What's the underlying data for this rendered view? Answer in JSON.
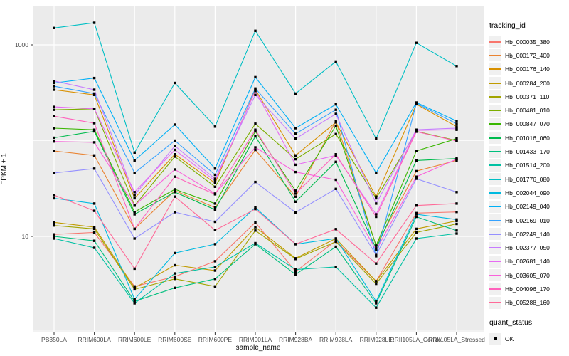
{
  "chart_data": {
    "type": "line",
    "title": "",
    "xlabel": "sample_name",
    "ylabel": "FPKM + 1",
    "legend_title": "tracking_id",
    "legend_position": "right",
    "y_scale": "log10",
    "ylim": [
      1,
      2500
    ],
    "grid": true,
    "panel_background": "#EBEBEB",
    "gridline_color": "#FFFFFF",
    "point_color": "#000000",
    "tick_label_color": "#4D4D4D",
    "y_major_ticks": [
      {
        "label": "1000",
        "value": 1000
      },
      {
        "label": "10",
        "value": 10
      }
    ],
    "y_minor_gridlines": [
      100,
      1
    ],
    "categories": [
      "PB350LA",
      "RRIM600LA",
      "RRIM600LE",
      "RRIM600SE",
      "RRIM600PE",
      "RRIM901LA",
      "RRIM928BA",
      "RRIM928LA",
      "RRIM928LE",
      "RRII105LA_Control",
      "RRII105LA_Stressed"
    ],
    "series": [
      {
        "name": "Hb_000035_380",
        "color": "#F8766D",
        "values": [
          10.5,
          11,
          3.0,
          3.8,
          5.5,
          14,
          4.3,
          9.0,
          3.4,
          17.5,
          18
        ]
      },
      {
        "name": "Hb_000172_400",
        "color": "#EA8331",
        "values": [
          78,
          70,
          12,
          30,
          20,
          80,
          26,
          160,
          8.0,
          48,
          62
        ]
      },
      {
        "name": "Hb_000176_140",
        "color": "#D89000",
        "values": [
          340,
          300,
          25,
          72,
          36,
          340,
          70,
          155,
          26,
          240,
          140
        ]
      },
      {
        "name": "Hb_000284_200",
        "color": "#C09B00",
        "values": [
          14,
          12.5,
          2.9,
          5.0,
          4.4,
          12.5,
          5.9,
          9.5,
          3.4,
          12,
          14.5
        ]
      },
      {
        "name": "Hb_000371_110",
        "color": "#A3A500",
        "values": [
          13,
          12,
          2.8,
          3.6,
          3.0,
          11.5,
          5.8,
          8.8,
          3.2,
          11,
          13.5
        ]
      },
      {
        "name": "Hb_000481_010",
        "color": "#7CAE00",
        "values": [
          210,
          215,
          21,
          68,
          33,
          150,
          64,
          117,
          25,
          125,
          100
        ]
      },
      {
        "name": "Hb_000847_070",
        "color": "#39B600",
        "values": [
          135,
          130,
          18,
          31,
          22,
          125,
          30,
          143,
          8.0,
          78,
          105
        ]
      },
      {
        "name": "Hb_001016_060",
        "color": "#00BB4E",
        "values": [
          107,
          125,
          17,
          29,
          19,
          111,
          23,
          60,
          7.5,
          62,
          65
        ]
      },
      {
        "name": "Hb_001433_170",
        "color": "#00BF7D",
        "values": [
          10,
          9,
          2.1,
          2.9,
          3.6,
          8.3,
          4.0,
          7.8,
          2.0,
          16,
          11.5
        ]
      },
      {
        "name": "Hb_001514_200",
        "color": "#00C1A3",
        "values": [
          9.5,
          7.6,
          2.0,
          4.1,
          4.8,
          8.5,
          4.5,
          4.8,
          1.8,
          9.5,
          10.7
        ]
      },
      {
        "name": "Hb_001776_080",
        "color": "#00BFC4",
        "values": [
          1500,
          1700,
          75,
          400,
          140,
          1400,
          310,
          670,
          105,
          1050,
          600
        ]
      },
      {
        "name": "Hb_002044_090",
        "color": "#00BAE0",
        "values": [
          25,
          22,
          2.2,
          6.7,
          8.3,
          20,
          8.3,
          9.5,
          2.1,
          17,
          15
        ]
      },
      {
        "name": "Hb_002149_040",
        "color": "#00B0F6",
        "values": [
          400,
          450,
          62,
          147,
          51,
          460,
          135,
          239,
          46,
          250,
          160
        ]
      },
      {
        "name": "Hb_002169_010",
        "color": "#35A2FF",
        "values": [
          370,
          310,
          46,
          100,
          44,
          350,
          118,
          210,
          6.2,
          245,
          150
        ]
      },
      {
        "name": "Hb_002249_140",
        "color": "#9590FF",
        "values": [
          46,
          51,
          9.5,
          17.9,
          14.2,
          37,
          17.8,
          31.3,
          6.4,
          40,
          29
        ]
      },
      {
        "name": "Hb_002377_050",
        "color": "#C77CFF",
        "values": [
          420,
          340,
          27,
          88,
          40,
          300,
          105,
          190,
          22,
          130,
          135
        ]
      },
      {
        "name": "Hb_002681_140",
        "color": "#E76BF3",
        "values": [
          225,
          215,
          29,
          80,
          38,
          330,
          56,
          70,
          17,
          128,
          130
        ]
      },
      {
        "name": "Hb_003605_070",
        "color": "#FA62DB",
        "values": [
          98,
          96,
          21,
          50,
          28,
          85,
          47,
          39,
          7.2,
          42,
          64
        ]
      },
      {
        "name": "Hb_004096_170",
        "color": "#FF62BC",
        "values": [
          180,
          152,
          12,
          42,
          27.5,
          130,
          28,
          72,
          16,
          124,
          99
        ]
      },
      {
        "name": "Hb_005288_160",
        "color": "#FF6A98",
        "values": [
          27,
          18.5,
          4.6,
          26,
          11.6,
          19.3,
          8.3,
          11.9,
          5.2,
          21,
          22
        ]
      }
    ],
    "quant_status": {
      "title": "quant_status",
      "items": [
        {
          "label": "OK",
          "marker": "black-square"
        }
      ]
    }
  }
}
